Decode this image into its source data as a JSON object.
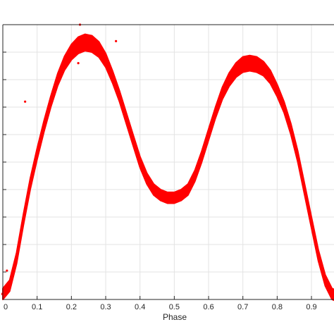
{
  "chart_data": {
    "type": "scatter",
    "xlabel": "Phase",
    "ylabel": "",
    "title": "",
    "xlim": [
      0,
      1
    ],
    "ylim": [
      0,
      1
    ],
    "grid": true,
    "x_ticks": [
      0,
      0.1,
      0.2,
      0.3,
      0.4,
      0.5,
      0.6,
      0.7,
      0.8,
      0.9
    ],
    "x_tick_labels": [
      "0",
      "0.1",
      "0.2",
      "0.3",
      "0.4",
      "0.5",
      "0.6",
      "0.7",
      "0.8",
      "0.9"
    ],
    "y_gridlines": 10,
    "marker_color": "#ff0000",
    "series": [
      {
        "x": [
          0.0,
          0.02,
          0.04,
          0.06,
          0.08,
          0.1,
          0.12,
          0.14,
          0.16,
          0.18,
          0.2,
          0.22,
          0.24,
          0.26,
          0.28,
          0.3,
          0.32,
          0.34,
          0.36,
          0.38,
          0.4,
          0.42,
          0.44,
          0.46,
          0.48,
          0.5,
          0.52,
          0.54,
          0.56,
          0.58,
          0.6,
          0.62,
          0.64,
          0.66,
          0.68,
          0.7,
          0.72,
          0.74,
          0.76,
          0.78,
          0.8,
          0.82,
          0.84,
          0.86,
          0.88,
          0.9,
          0.92,
          0.94,
          0.96,
          0.98,
          1.0
        ],
        "y": [
          0.02,
          0.05,
          0.15,
          0.29,
          0.42,
          0.53,
          0.63,
          0.72,
          0.8,
          0.86,
          0.9,
          0.925,
          0.935,
          0.93,
          0.91,
          0.87,
          0.81,
          0.74,
          0.66,
          0.58,
          0.5,
          0.44,
          0.4,
          0.38,
          0.37,
          0.37,
          0.38,
          0.4,
          0.45,
          0.52,
          0.6,
          0.68,
          0.75,
          0.8,
          0.835,
          0.855,
          0.86,
          0.855,
          0.84,
          0.81,
          0.76,
          0.7,
          0.62,
          0.52,
          0.4,
          0.28,
          0.16,
          0.07,
          0.02,
          0.01,
          0.02
        ],
        "band_halfwidth": [
          0.02,
          0.02,
          0.02,
          0.02,
          0.02,
          0.02,
          0.02,
          0.02,
          0.022,
          0.025,
          0.028,
          0.03,
          0.03,
          0.03,
          0.028,
          0.025,
          0.022,
          0.02,
          0.02,
          0.02,
          0.02,
          0.02,
          0.02,
          0.02,
          0.02,
          0.02,
          0.02,
          0.02,
          0.02,
          0.02,
          0.02,
          0.02,
          0.022,
          0.024,
          0.026,
          0.028,
          0.028,
          0.028,
          0.026,
          0.024,
          0.022,
          0.02,
          0.02,
          0.02,
          0.02,
          0.02,
          0.02,
          0.02,
          0.02,
          0.02,
          0.02
        ]
      }
    ],
    "outliers": [
      {
        "x": 0.225,
        "y": 1.0
      },
      {
        "x": 0.22,
        "y": 0.86
      },
      {
        "x": 0.33,
        "y": 0.94
      },
      {
        "x": 0.065,
        "y": 0.72
      },
      {
        "x": 0.012,
        "y": 0.105
      },
      {
        "x": 0.235,
        "y": 0.905
      }
    ]
  }
}
